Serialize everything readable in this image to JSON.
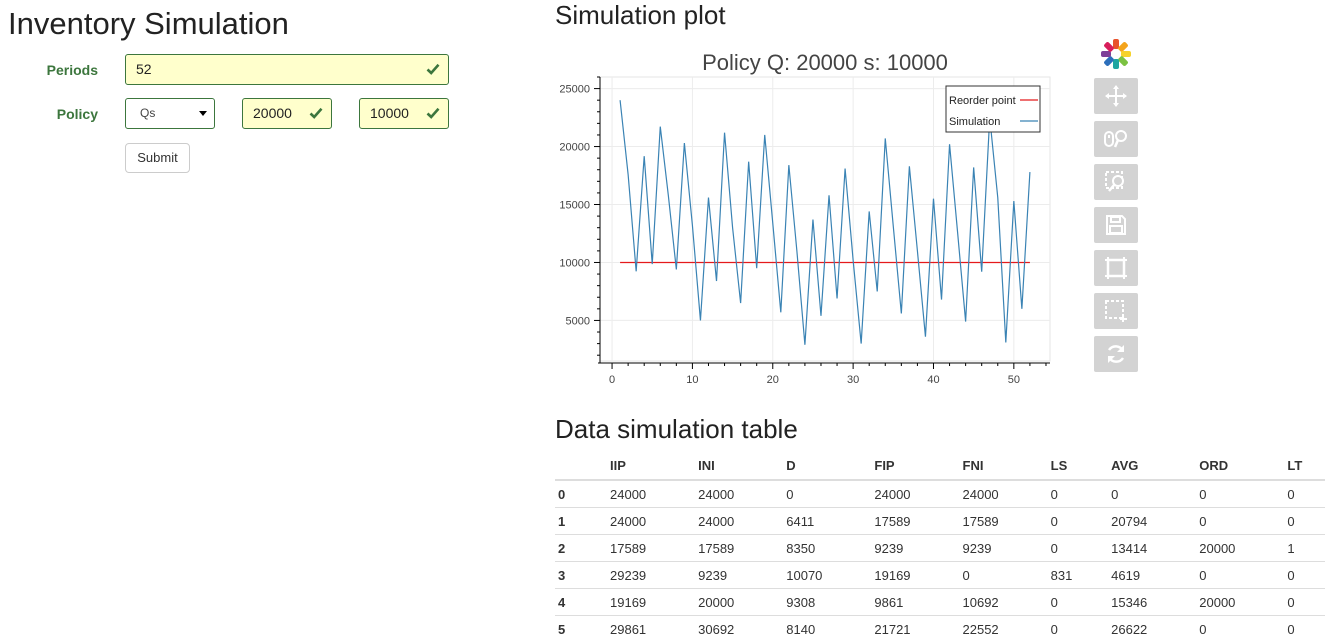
{
  "app_title": "Inventory Simulation",
  "form": {
    "periods_label": "Periods",
    "periods_value": "52",
    "policy_label": "Policy",
    "policy_select_value": "Qs",
    "q_value": "20000",
    "s_value": "10000",
    "submit_label": "Submit"
  },
  "plot_heading": "Simulation plot",
  "table_heading": "Data simulation table",
  "colors": {
    "valid_green": "#3c763d",
    "field_bg": "#ffffcc",
    "simulation_line": "#3a83b4",
    "reorder_line": "#e41a1c"
  },
  "toolbar_icons": [
    "bokeh-logo-icon",
    "pan-icon",
    "wheel-zoom-icon",
    "box-zoom-icon",
    "save-icon",
    "reset-view-icon",
    "box-select-icon",
    "refresh-icon"
  ],
  "chart_data": {
    "type": "line",
    "title": "Policy Q: 20000  s: 10000",
    "xlabel": "",
    "ylabel": "",
    "xlim": [
      -1.5,
      54.5
    ],
    "ylim": [
      1500,
      26000
    ],
    "x_ticks": [
      0,
      10,
      20,
      30,
      40,
      50
    ],
    "y_ticks": [
      5000,
      10000,
      15000,
      20000,
      25000
    ],
    "grid": true,
    "legend_position": "top-right",
    "series": [
      {
        "name": "Reorder point",
        "color": "#e41a1c",
        "x": [
          1,
          52
        ],
        "y": [
          10000,
          10000
        ]
      },
      {
        "name": "Simulation",
        "color": "#3a83b4",
        "x": [
          1,
          2,
          3,
          4,
          5,
          6,
          7,
          8,
          9,
          10,
          11,
          12,
          13,
          14,
          15,
          16,
          17,
          18,
          19,
          20,
          21,
          22,
          23,
          24,
          25,
          26,
          27,
          28,
          29,
          30,
          31,
          32,
          33,
          34,
          35,
          36,
          37,
          38,
          39,
          40,
          41,
          42,
          43,
          44,
          45,
          46,
          47,
          48,
          49,
          50,
          51,
          52
        ],
        "y": [
          24000,
          17589,
          9239,
          19169,
          9861,
          21721,
          15800,
          9400,
          20300,
          13200,
          5000,
          15600,
          8400,
          21200,
          13000,
          6500,
          18700,
          9500,
          21000,
          13400,
          5700,
          18400,
          11000,
          2900,
          13700,
          5400,
          15800,
          6900,
          18100,
          10200,
          3000,
          14400,
          7500,
          20700,
          13100,
          5600,
          18300,
          11000,
          3600,
          15500,
          6800,
          20200,
          12600,
          4900,
          18200,
          9200,
          22500,
          15600,
          3100,
          15300,
          6000,
          17800
        ]
      }
    ]
  },
  "table": {
    "columns": [
      "",
      "IIP",
      "INI",
      "D",
      "FIP",
      "FNI",
      "LS",
      "AVG",
      "ORD",
      "LT"
    ],
    "rows": [
      [
        "0",
        "24000",
        "24000",
        "0",
        "24000",
        "24000",
        "0",
        "0",
        "0",
        "0"
      ],
      [
        "1",
        "24000",
        "24000",
        "6411",
        "17589",
        "17589",
        "0",
        "20794",
        "0",
        "0"
      ],
      [
        "2",
        "17589",
        "17589",
        "8350",
        "9239",
        "9239",
        "0",
        "13414",
        "20000",
        "1"
      ],
      [
        "3",
        "29239",
        "9239",
        "10070",
        "19169",
        "0",
        "831",
        "4619",
        "0",
        "0"
      ],
      [
        "4",
        "19169",
        "20000",
        "9308",
        "9861",
        "10692",
        "0",
        "15346",
        "20000",
        "0"
      ],
      [
        "5",
        "29861",
        "30692",
        "8140",
        "21721",
        "22552",
        "0",
        "26622",
        "0",
        "0"
      ]
    ]
  }
}
